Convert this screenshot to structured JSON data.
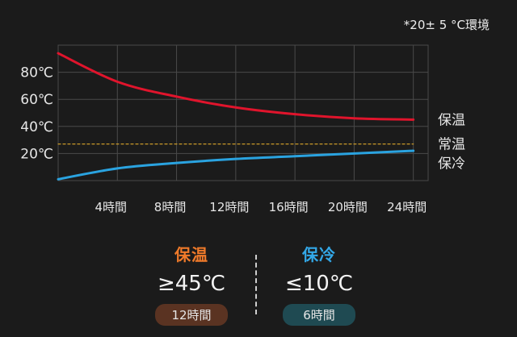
{
  "note": "*20± 5 °C環境",
  "chart_data": {
    "type": "line",
    "x": [
      0,
      4,
      8,
      12,
      16,
      20,
      24
    ],
    "xlim": [
      0,
      25
    ],
    "ylim": [
      0,
      100
    ],
    "y_ticks": [
      {
        "value": 80,
        "label": "80℃"
      },
      {
        "value": 60,
        "label": "60℃"
      },
      {
        "value": 40,
        "label": "40℃"
      },
      {
        "value": 20,
        "label": "20℃"
      }
    ],
    "x_ticks": [
      {
        "value": 4,
        "label": "4時間"
      },
      {
        "value": 8,
        "label": "8時間"
      },
      {
        "value": 12,
        "label": "12時間"
      },
      {
        "value": 16,
        "label": "16時間"
      },
      {
        "value": 20,
        "label": "20時間"
      },
      {
        "value": 24,
        "label": "24時間"
      }
    ],
    "series": [
      {
        "name": "保温",
        "color": "#e0142c",
        "style": "solid",
        "values": [
          94,
          73,
          62,
          54,
          49,
          46,
          45
        ]
      },
      {
        "name": "常温",
        "color": "#c99a2a",
        "style": "dashed",
        "values": [
          27,
          27,
          27,
          27,
          27,
          27,
          27
        ]
      },
      {
        "name": "保冷",
        "color": "#2aa3e0",
        "style": "solid",
        "values": [
          1,
          9,
          13,
          16,
          18,
          20,
          22
        ]
      }
    ],
    "grid": true
  },
  "summary": {
    "hot": {
      "title": "保温",
      "value": "≥45℃",
      "time": "12時間",
      "title_color": "#f07a2a",
      "pill_color": "#5a3322"
    },
    "cold": {
      "title": "保冷",
      "value": "≤10℃",
      "time": "6時間",
      "title_color": "#33a8e8",
      "pill_color": "#1f4a52"
    }
  }
}
